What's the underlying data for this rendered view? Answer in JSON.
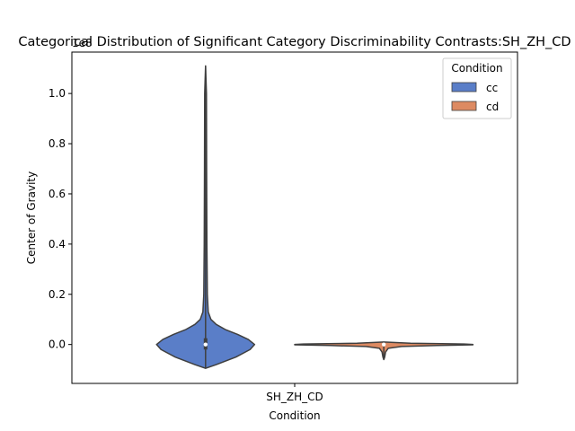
{
  "chart_data": {
    "type": "violin",
    "title": "Categorical Distribution of Significant Category Discriminability Contrasts:SH_ZH_CD",
    "xlabel": "Condition",
    "ylabel": "Center of Gravity",
    "y_offset_label": "1e8",
    "categories": [
      "SH_ZH_CD"
    ],
    "ylim": [
      -0.155,
      1.165
    ],
    "yticks": [
      0.0,
      0.2,
      0.4,
      0.6,
      0.8,
      1.0
    ],
    "ytick_labels": [
      "0.0",
      "0.2",
      "0.4",
      "0.6",
      "0.8",
      "1.0"
    ],
    "legend": {
      "title": "Condition",
      "placement": "upper-right"
    },
    "grid": false,
    "series": [
      {
        "name": "cc",
        "color": "#5a7ec8",
        "range": [
          -0.095,
          1.11
        ],
        "quartiles": [
          -0.02,
          0.0,
          0.025
        ],
        "median": 0.0,
        "density": [
          [
            -0.095,
            0.0
          ],
          [
            -0.08,
            0.12
          ],
          [
            -0.05,
            0.34
          ],
          [
            -0.02,
            0.5
          ],
          [
            0.0,
            0.55
          ],
          [
            0.02,
            0.48
          ],
          [
            0.04,
            0.36
          ],
          [
            0.06,
            0.22
          ],
          [
            0.08,
            0.12
          ],
          [
            0.1,
            0.06
          ],
          [
            0.13,
            0.03
          ],
          [
            0.2,
            0.02
          ],
          [
            0.4,
            0.015
          ],
          [
            0.7,
            0.012
          ],
          [
            1.0,
            0.01
          ],
          [
            1.11,
            0.0
          ]
        ]
      },
      {
        "name": "cd",
        "color": "#dd8a62",
        "range": [
          -0.06,
          0.01
        ],
        "quartiles": [
          -0.003,
          0.0,
          0.002
        ],
        "median": 0.0,
        "density": [
          [
            -0.06,
            0.0
          ],
          [
            -0.05,
            0.01
          ],
          [
            -0.03,
            0.02
          ],
          [
            -0.015,
            0.05
          ],
          [
            -0.008,
            0.2
          ],
          [
            -0.004,
            0.6
          ],
          [
            -0.001,
            1.0
          ],
          [
            0.0,
            1.0
          ],
          [
            0.002,
            0.9
          ],
          [
            0.005,
            0.3
          ],
          [
            0.01,
            0.0
          ]
        ]
      }
    ]
  }
}
